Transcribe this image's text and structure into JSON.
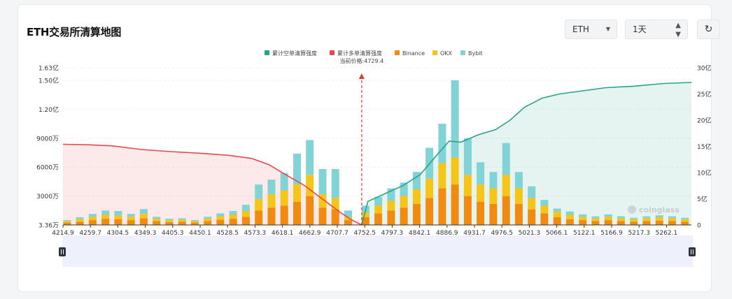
{
  "header": {
    "title": "ETH交易所清算地图"
  },
  "controls": {
    "symbol_value": "ETH",
    "range_value": "1天",
    "refresh_icon": "refresh-icon",
    "dropdown_icon": "chevron-down-icon",
    "stepper_icon": "up-down-icon"
  },
  "colors": {
    "short_cum": "#26a48a",
    "long_cum": "#e8474d",
    "binance": "#f08a11",
    "okx": "#f5c518",
    "bybit": "#82d3d5",
    "price_line": "#d93b3b"
  },
  "chart_data": {
    "type": "bar",
    "legend": [
      "累计空单清算强度",
      "累计多单清算强度",
      "Binance",
      "OKX",
      "Bybit"
    ],
    "legend_position": "top-center",
    "current_price_label": "当前价格:4729.4",
    "current_price": 4729.4,
    "x_range": [
      4214.9,
      5297.2
    ],
    "x_tick_labels": [
      "4214.9",
      "4259.7",
      "4304.5",
      "4349.3",
      "4405.3",
      "4450.1",
      "4528.5",
      "4573.3",
      "4618.1",
      "4662.9",
      "4707.7",
      "4752.5",
      "4797.3",
      "4842.1",
      "4886.9",
      "4931.7",
      "4976.5",
      "5021.3",
      "5066.1",
      "5122.1",
      "5166.9",
      "5217.3",
      "5262.1"
    ],
    "y_left_tick_labels": [
      "3.36万",
      "3000万",
      "6000万",
      "9000万",
      "1.20亿",
      "1.50亿",
      "1.63亿"
    ],
    "y_left_tick_values": [
      33600,
      30000000,
      60000000,
      90000000,
      120000000,
      150000000,
      163000000
    ],
    "y_left_range": [
      33600,
      163000000
    ],
    "y_right_tick_labels": [
      "0",
      "5亿",
      "10亿",
      "15亿",
      "20亿",
      "25亿",
      "30亿"
    ],
    "y_right_tick_values": [
      0,
      500000000,
      1000000000,
      1500000000,
      2000000000,
      2500000000,
      3000000000
    ],
    "y_right_range": [
      0,
      3000000000
    ],
    "grid": "horizontal",
    "long_cumulative": {
      "name": "累计多单清算强度",
      "x": [
        4214.9,
        4260,
        4300,
        4350,
        4400,
        4450,
        4500,
        4540,
        4570,
        4600,
        4630,
        4660,
        4690,
        4710,
        4729.4
      ],
      "y": [
        1540000000,
        1530000000,
        1510000000,
        1440000000,
        1400000000,
        1370000000,
        1330000000,
        1270000000,
        1150000000,
        950000000,
        760000000,
        510000000,
        260000000,
        110000000,
        0
      ]
    },
    "short_cumulative": {
      "name": "累计空单清算强度",
      "x": [
        4729.4,
        4740,
        4770,
        4800,
        4830,
        4860,
        4880,
        4900,
        4930,
        4960,
        4985,
        5010,
        5040,
        5070,
        5110,
        5150,
        5200,
        5250,
        5297.2
      ],
      "y": [
        0,
        450000000,
        600000000,
        750000000,
        960000000,
        1350000000,
        1600000000,
        1580000000,
        1720000000,
        1820000000,
        2000000000,
        2250000000,
        2420000000,
        2500000000,
        2560000000,
        2620000000,
        2650000000,
        2700000000,
        2720000000
      ]
    },
    "bars": {
      "x": [
        4222,
        4244,
        4266,
        4288,
        4310,
        4332,
        4354,
        4376,
        4398,
        4420,
        4442,
        4464,
        4486,
        4508,
        4530,
        4552,
        4574,
        4596,
        4618,
        4640,
        4662,
        4684,
        4706,
        4736,
        4758,
        4780,
        4802,
        4824,
        4846,
        4868,
        4890,
        4912,
        4934,
        4956,
        4978,
        5000,
        5022,
        5044,
        5066,
        5088,
        5110,
        5132,
        5154,
        5176,
        5198,
        5220,
        5242,
        5264,
        5286
      ],
      "binance": [
        2500000,
        3500000,
        5000000,
        6500000,
        6000000,
        5000000,
        7000000,
        4000000,
        3000000,
        3500000,
        2500000,
        4000000,
        5500000,
        6500000,
        8500000,
        15000000,
        18000000,
        20000000,
        24000000,
        30000000,
        18000000,
        16000000,
        5000000,
        8000000,
        12000000,
        15000000,
        18000000,
        22000000,
        28000000,
        38000000,
        42000000,
        30000000,
        24000000,
        22000000,
        30000000,
        22000000,
        16000000,
        12000000,
        8000000,
        6000000,
        5000000,
        4000000,
        5000000,
        4000000,
        3500000,
        4000000,
        4500000,
        4000000,
        3500000
      ],
      "okx": [
        1500000,
        2500000,
        3500000,
        4000000,
        4000000,
        3500000,
        4500000,
        2500000,
        2000000,
        2000000,
        1500000,
        2500000,
        3500000,
        4000000,
        6000000,
        12000000,
        14000000,
        16000000,
        18000000,
        22000000,
        14000000,
        12000000,
        3000000,
        5000000,
        8000000,
        10000000,
        12000000,
        15000000,
        20000000,
        26000000,
        28000000,
        22000000,
        18000000,
        16000000,
        22000000,
        16000000,
        12000000,
        8000000,
        6000000,
        4500000,
        3500000,
        3000000,
        3500000,
        3000000,
        2500000,
        3000000,
        3500000,
        3000000,
        2500000
      ],
      "bybit": [
        1000000,
        2000000,
        3000000,
        4500000,
        4500000,
        3000000,
        5000000,
        2000000,
        1500000,
        1500000,
        1000000,
        2000000,
        3000000,
        4000000,
        6500000,
        15000000,
        15000000,
        18000000,
        32000000,
        36000000,
        26000000,
        30000000,
        7000000,
        7000000,
        9000000,
        13000000,
        14000000,
        18000000,
        32000000,
        41000000,
        80000000,
        38000000,
        23000000,
        17000000,
        33000000,
        17000000,
        12000000,
        6000000,
        3000000,
        3500000,
        2500000,
        2000000,
        2500000,
        2000000,
        1500000,
        2000000,
        2000000,
        2000000,
        1500000
      ]
    }
  },
  "watermark": "coinglass",
  "slider": {
    "left_handle_icon": "pause-handle-icon",
    "right_handle_icon": "pause-handle-icon"
  }
}
